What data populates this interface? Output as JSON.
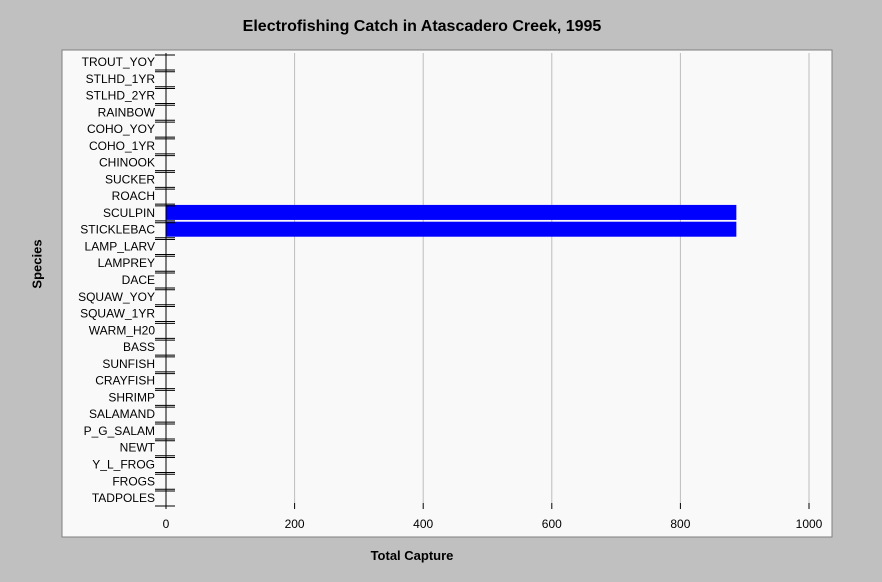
{
  "chart_data": {
    "type": "bar",
    "orientation": "horizontal",
    "title": "Electrofishing Catch in Atascadero Creek, 1995",
    "xlabel": "Total Capture",
    "ylabel": "Species",
    "xlim": [
      0,
      1000
    ],
    "xticks": [
      0,
      200,
      400,
      600,
      800,
      1000
    ],
    "grid": "vertical",
    "bar_color": "#0000ff",
    "categories": [
      "TROUT_YOY",
      "STLHD_1YR",
      "STLHD_2YR",
      "RAINBOW",
      "COHO_YOY",
      "COHO_1YR",
      "CHINOOK",
      "SUCKER",
      "ROACH",
      "SCULPIN",
      "STICKLEBAC",
      "LAMP_LARV",
      "LAMPREY",
      "DACE",
      "SQUAW_YOY",
      "SQUAW_1YR",
      "WARM_H20",
      "BASS",
      "SUNFISH",
      "CRAYFISH",
      "SHRIMP",
      "SALAMAND",
      "P_G_SALAM",
      "NEWT",
      "Y_L_FROG",
      "FROGS",
      "TADPOLES"
    ],
    "values": [
      0,
      0,
      0,
      0,
      0,
      0,
      0,
      0,
      0,
      887,
      887,
      0,
      0,
      0,
      0,
      0,
      0,
      0,
      0,
      0,
      0,
      0,
      0,
      0,
      0,
      0,
      0
    ]
  }
}
